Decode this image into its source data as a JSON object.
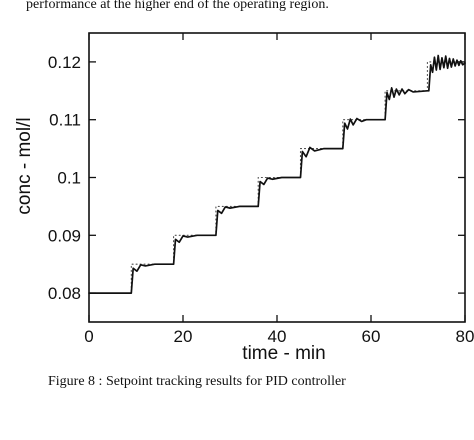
{
  "intro_text": "performance at the higher end of the operating region.",
  "caption": "Figure 8 : Setpoint tracking results for PID controller",
  "chart_data": {
    "type": "line",
    "title": "",
    "xlabel": "time - min",
    "ylabel": "conc - mol/l",
    "xlim": [
      0,
      80
    ],
    "ylim": [
      0.075,
      0.125
    ],
    "x_ticks": [
      0,
      20,
      40,
      60,
      80
    ],
    "x_tick_labels": [
      "0",
      "20",
      "40",
      "60",
      "80"
    ],
    "y_ticks": [
      0.08,
      0.09,
      0.1,
      0.11,
      0.12
    ],
    "y_tick_labels": [
      "0.08",
      "0.09",
      "0.1",
      "0.11",
      "0.12"
    ],
    "grid": false,
    "line_color": "#111111",
    "series": [
      {
        "name": "",
        "style": "dotted",
        "x": [
          0,
          9,
          9,
          18,
          18,
          27,
          27,
          36,
          36,
          45,
          45,
          54,
          54,
          63,
          63,
          72,
          72,
          80
        ],
        "y": [
          0.08,
          0.08,
          0.085,
          0.085,
          0.09,
          0.09,
          0.095,
          0.095,
          0.1,
          0.1,
          0.105,
          0.105,
          0.11,
          0.11,
          0.115,
          0.115,
          0.12,
          0.12
        ]
      },
      {
        "name": "",
        "style": "solid",
        "x": [
          0,
          9,
          9.4,
          10.2,
          11,
          12,
          14,
          18,
          18.4,
          19.2,
          20,
          21,
          23,
          27,
          27.4,
          28.2,
          29,
          30,
          32,
          36,
          36.4,
          37.2,
          38,
          39,
          41,
          45,
          45.4,
          46.2,
          47,
          48,
          50,
          54,
          54.4,
          55,
          55.6,
          56.2,
          57,
          58,
          59,
          63,
          63.4,
          63.9,
          64.4,
          64.9,
          65.4,
          66,
          66.6,
          67.2,
          68,
          69,
          72,
          72.3,
          72.7,
          73.1,
          73.5,
          73.9,
          74.3,
          74.7,
          75.1,
          75.5,
          75.9,
          76.3,
          76.7,
          77.1,
          77.5,
          77.9,
          78.3,
          78.7,
          79.1,
          79.5,
          80
        ],
        "y": [
          0.08,
          0.08,
          0.0843,
          0.0838,
          0.0849,
          0.0847,
          0.085,
          0.085,
          0.0893,
          0.0888,
          0.0899,
          0.0897,
          0.09,
          0.09,
          0.0943,
          0.0938,
          0.0949,
          0.0947,
          0.095,
          0.095,
          0.0993,
          0.0988,
          0.0999,
          0.0997,
          0.1,
          0.1,
          0.1045,
          0.1036,
          0.1052,
          0.1046,
          0.105,
          0.105,
          0.1094,
          0.1084,
          0.1101,
          0.1091,
          0.1102,
          0.1097,
          0.11,
          0.11,
          0.1147,
          0.1135,
          0.1155,
          0.1139,
          0.1153,
          0.1143,
          0.1153,
          0.1145,
          0.1152,
          0.1148,
          0.115,
          0.115,
          0.1195,
          0.1182,
          0.1208,
          0.1186,
          0.1211,
          0.1187,
          0.1207,
          0.119,
          0.121,
          0.1189,
          0.1206,
          0.1191,
          0.1205,
          0.1193,
          0.1203,
          0.1194,
          0.1202,
          0.1195,
          0.1198
        ]
      }
    ]
  }
}
